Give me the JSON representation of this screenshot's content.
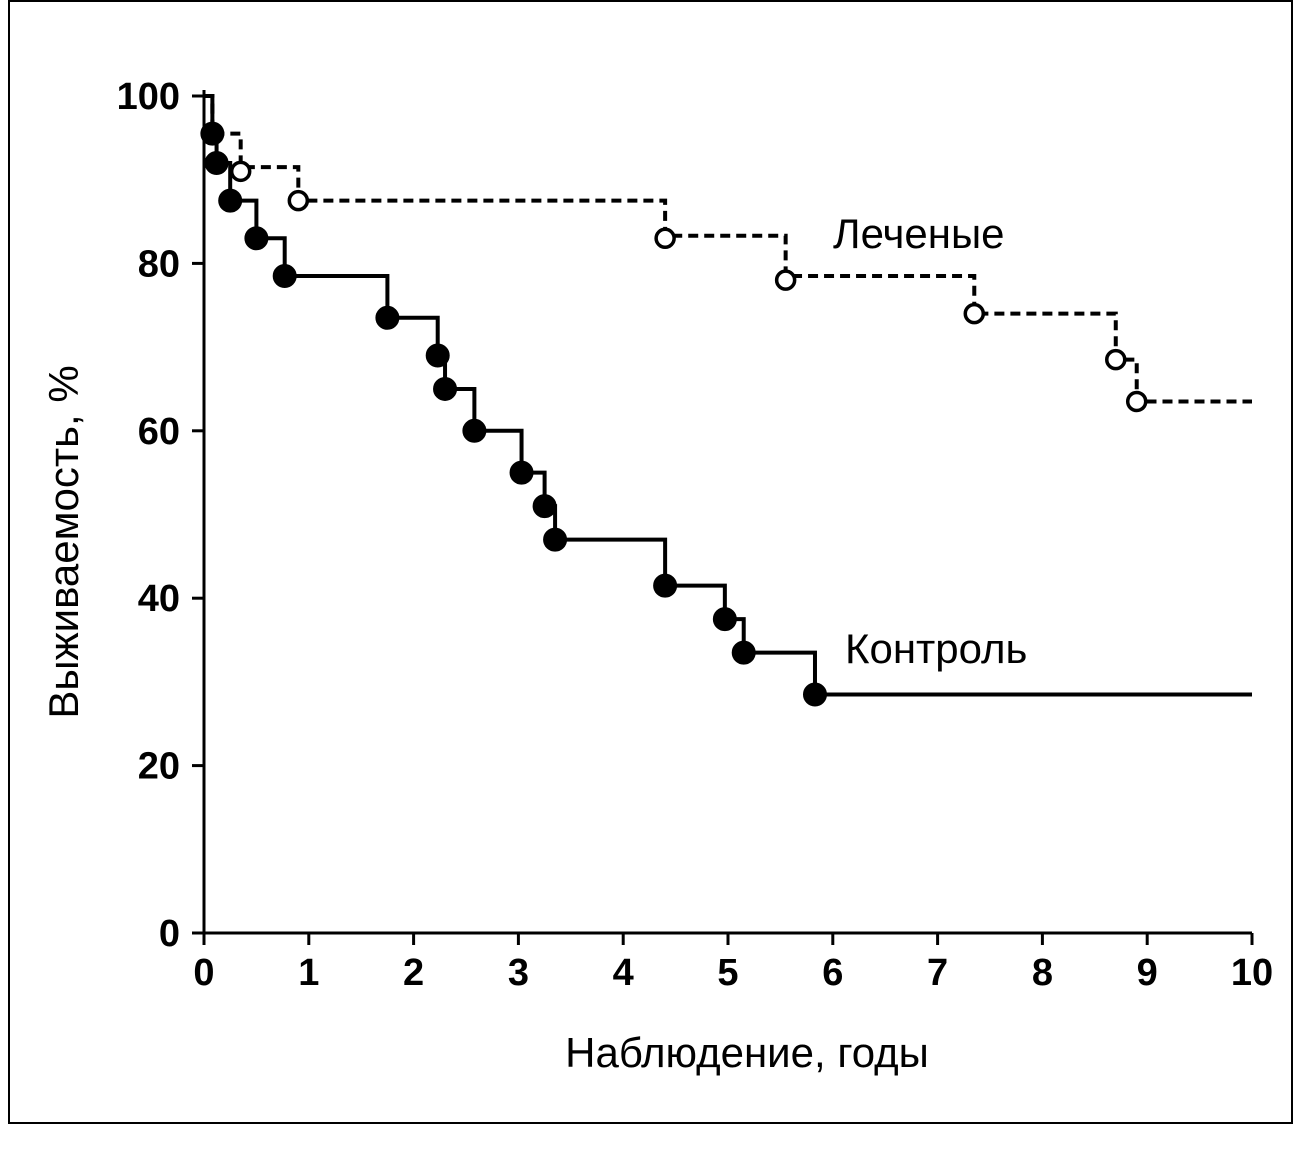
{
  "chart_data": {
    "type": "line",
    "xlabel": "Наблюдение, годы",
    "ylabel": "Выживаемость, %",
    "xlim": [
      0,
      10
    ],
    "ylim": [
      0,
      100
    ],
    "x_ticks": [
      "0",
      "1",
      "2",
      "3",
      "4",
      "5",
      "6",
      "7",
      "8",
      "9",
      "10"
    ],
    "y_ticks": [
      "0",
      "20",
      "40",
      "60",
      "80",
      "100"
    ],
    "grid": false,
    "series": [
      {
        "name": "Леченые",
        "style": "dashed",
        "marker": "open-circle",
        "steps": [
          {
            "x": 0,
            "y": 100
          },
          {
            "x": 0.08,
            "y": 95.5
          },
          {
            "x": 0.35,
            "y": 91.5
          },
          {
            "x": 0.9,
            "y": 87.5
          },
          {
            "x": 4.4,
            "y": 83.3
          },
          {
            "x": 5.55,
            "y": 78.5
          },
          {
            "x": 7.35,
            "y": 74
          },
          {
            "x": 8.7,
            "y": 68.5
          },
          {
            "x": 8.9,
            "y": 63.5
          }
        ],
        "end_x": 10,
        "markers": [
          {
            "x": 0.08,
            "y": 95.5
          },
          {
            "x": 0.35,
            "y": 91
          },
          {
            "x": 0.9,
            "y": 87.5
          },
          {
            "x": 4.4,
            "y": 83
          },
          {
            "x": 5.55,
            "y": 78
          },
          {
            "x": 7.35,
            "y": 74
          },
          {
            "x": 8.7,
            "y": 68.5
          },
          {
            "x": 8.9,
            "y": 63.5
          }
        ]
      },
      {
        "name": "Контроль",
        "style": "solid",
        "marker": "filled-circle",
        "steps": [
          {
            "x": 0,
            "y": 100
          },
          {
            "x": 0.08,
            "y": 95.5
          },
          {
            "x": 0.12,
            "y": 92
          },
          {
            "x": 0.25,
            "y": 87.5
          },
          {
            "x": 0.5,
            "y": 83
          },
          {
            "x": 0.77,
            "y": 78.5
          },
          {
            "x": 1.75,
            "y": 73.5
          },
          {
            "x": 2.23,
            "y": 69
          },
          {
            "x": 2.3,
            "y": 65
          },
          {
            "x": 2.58,
            "y": 60
          },
          {
            "x": 3.03,
            "y": 55
          },
          {
            "x": 3.25,
            "y": 51
          },
          {
            "x": 3.35,
            "y": 47
          },
          {
            "x": 4.4,
            "y": 41.5
          },
          {
            "x": 4.97,
            "y": 37.5
          },
          {
            "x": 5.15,
            "y": 33.5
          },
          {
            "x": 5.83,
            "y": 28.5
          }
        ],
        "end_x": 10,
        "markers": [
          {
            "x": 0.08,
            "y": 95.5
          },
          {
            "x": 0.12,
            "y": 92
          },
          {
            "x": 0.25,
            "y": 87.5
          },
          {
            "x": 0.5,
            "y": 83
          },
          {
            "x": 0.77,
            "y": 78.5
          },
          {
            "x": 1.75,
            "y": 73.5
          },
          {
            "x": 2.23,
            "y": 69
          },
          {
            "x": 2.3,
            "y": 65
          },
          {
            "x": 2.58,
            "y": 60
          },
          {
            "x": 3.03,
            "y": 55
          },
          {
            "x": 3.25,
            "y": 51
          },
          {
            "x": 3.35,
            "y": 47
          },
          {
            "x": 4.4,
            "y": 41.5
          },
          {
            "x": 4.97,
            "y": 37.5
          },
          {
            "x": 5.15,
            "y": 33.5
          },
          {
            "x": 5.83,
            "y": 28.5
          }
        ]
      }
    ]
  }
}
